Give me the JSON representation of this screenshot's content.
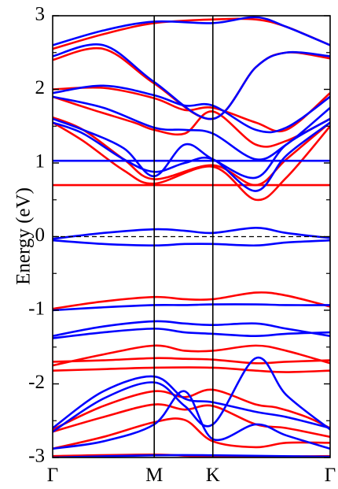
{
  "chart_data": {
    "type": "line",
    "chart_kind": "band-structure",
    "ylabel": "Energy (eV)",
    "xlabel": "",
    "ylim": [
      -3,
      3
    ],
    "y_ticks": [
      -3,
      -2,
      -1,
      0,
      1,
      2,
      3
    ],
    "y_tick_labels": [
      "-3",
      "-2",
      "-1",
      "0",
      "1",
      "2",
      "3"
    ],
    "x_path": {
      "labels": [
        "Γ",
        "M",
        "K",
        "Γ"
      ],
      "positions": [
        0,
        1,
        1.577,
        2.732
      ]
    },
    "xlim": [
      0,
      2.732
    ],
    "grid": false,
    "legend": "none",
    "fermi_level": {
      "y": 0,
      "style": "dashed",
      "color": "#000000"
    },
    "colors": {
      "red": "#ff0000",
      "blue": "#0000ff",
      "axis": "#000000"
    },
    "series": [
      {
        "color": "red",
        "x": [
          0,
          1,
          1.577,
          2.732
        ],
        "y": [
          -2.98,
          -2.96,
          -2.99,
          -2.98
        ]
      },
      {
        "color": "red",
        "x": [
          0,
          0.5,
          1,
          1.3,
          1.577,
          2.0,
          2.3,
          2.732
        ],
        "y": [
          -2.88,
          -2.72,
          -2.52,
          -2.49,
          -2.78,
          -2.86,
          -2.8,
          -2.8
        ]
      },
      {
        "color": "red",
        "x": [
          0,
          0.5,
          1,
          1.3,
          1.577,
          2.0,
          2.3,
          2.732
        ],
        "y": [
          -2.65,
          -2.45,
          -2.28,
          -2.35,
          -2.3,
          -2.55,
          -2.6,
          -2.72
        ]
      },
      {
        "color": "red",
        "x": [
          0,
          0.5,
          1,
          1.3,
          1.577,
          2.0,
          2.2,
          2.5,
          2.732
        ],
        "y": [
          -2.62,
          -2.3,
          -2.1,
          -2.18,
          -2.08,
          -2.28,
          -2.32,
          -2.45,
          -2.6
        ]
      },
      {
        "color": "red",
        "x": [
          0,
          0.5,
          1,
          1.577,
          2.0,
          2.3,
          2.732
        ],
        "y": [
          -1.82,
          -1.8,
          -1.78,
          -1.78,
          -1.82,
          -1.84,
          -1.82
        ]
      },
      {
        "color": "red",
        "x": [
          0,
          0.5,
          1,
          1.3,
          1.577,
          2.0,
          2.3,
          2.732
        ],
        "y": [
          -1.7,
          -1.68,
          -1.65,
          -1.66,
          -1.67,
          -1.72,
          -1.7,
          -1.68
        ]
      },
      {
        "color": "red",
        "x": [
          0,
          0.5,
          1,
          1.3,
          1.577,
          2.0,
          2.3,
          2.732
        ],
        "y": [
          -1.75,
          -1.6,
          -1.48,
          -1.55,
          -1.55,
          -1.48,
          -1.55,
          -1.72
        ]
      },
      {
        "color": "red",
        "x": [
          0,
          0.5,
          1,
          1.3,
          1.577,
          2.0,
          2.3,
          2.732
        ],
        "y": [
          -0.98,
          -0.88,
          -0.82,
          -0.85,
          -0.85,
          -0.76,
          -0.8,
          -0.95
        ]
      },
      {
        "color": "red",
        "x": [
          0,
          2.732
        ],
        "y": [
          0.7,
          0.7
        ]
      },
      {
        "color": "red",
        "x": [
          0,
          0.3,
          0.7,
          1,
          1.577,
          2.0,
          2.3,
          2.732
        ],
        "y": [
          1.55,
          1.3,
          0.9,
          0.72,
          0.95,
          0.5,
          0.8,
          1.5
        ]
      },
      {
        "color": "red",
        "x": [
          0,
          0.3,
          0.7,
          1,
          1.577,
          2.0,
          2.3,
          2.732
        ],
        "y": [
          1.62,
          1.45,
          1.05,
          0.78,
          0.97,
          0.7,
          1.05,
          1.55
        ]
      },
      {
        "color": "red",
        "x": [
          0,
          0.4,
          0.8,
          1,
          1.3,
          1.577,
          2.0,
          2.3,
          2.732
        ],
        "y": [
          1.9,
          1.72,
          1.55,
          1.45,
          1.4,
          1.7,
          1.25,
          1.3,
          1.6
        ]
      },
      {
        "color": "red",
        "x": [
          0,
          0.5,
          1,
          1.3,
          1.577,
          2.0,
          2.3,
          2.732
        ],
        "y": [
          2.0,
          2.02,
          1.88,
          1.72,
          1.75,
          1.55,
          1.45,
          1.95
        ]
      },
      {
        "color": "red",
        "x": [
          0,
          0.5,
          1,
          1.577,
          2.0,
          2.3,
          2.732
        ],
        "y": [
          2.4,
          2.55,
          2.08,
          1.6,
          2.3,
          2.5,
          2.42
        ]
      },
      {
        "color": "red",
        "x": [
          0,
          0.5,
          1,
          1.577,
          2.0,
          2.3,
          2.732
        ],
        "y": [
          2.55,
          2.75,
          2.9,
          2.95,
          2.95,
          2.85,
          2.6
        ]
      },
      {
        "color": "blue",
        "x": [
          0,
          1,
          1.577,
          2.732
        ],
        "y": [
          -3.0,
          -2.97,
          -2.97,
          -2.99
        ]
      },
      {
        "color": "blue",
        "x": [
          0,
          0.5,
          1,
          1.3,
          1.577,
          2.0,
          2.3,
          2.732
        ],
        "y": [
          -2.88,
          -2.78,
          -2.55,
          -2.1,
          -2.75,
          -2.55,
          -2.7,
          -2.88
        ]
      },
      {
        "color": "blue",
        "x": [
          0,
          0.5,
          1,
          1.3,
          1.577,
          2.0,
          2.3,
          2.732
        ],
        "y": [
          -2.65,
          -2.2,
          -1.98,
          -2.3,
          -2.55,
          -1.65,
          -2.15,
          -2.62
        ]
      },
      {
        "color": "blue",
        "x": [
          0,
          0.5,
          1,
          1.3,
          1.577,
          2.0,
          2.3,
          2.732
        ],
        "y": [
          -2.6,
          -2.1,
          -1.9,
          -2.2,
          -2.25,
          -2.38,
          -2.45,
          -2.6
        ]
      },
      {
        "color": "blue",
        "x": [
          0,
          0.5,
          1,
          1.3,
          1.577,
          2.0,
          2.3,
          2.732
        ],
        "y": [
          -1.38,
          -1.3,
          -1.25,
          -1.3,
          -1.32,
          -1.35,
          -1.32,
          -1.3
        ]
      },
      {
        "color": "blue",
        "x": [
          0,
          0.5,
          1,
          1.3,
          1.577,
          2.0,
          2.3,
          2.732
        ],
        "y": [
          -1.35,
          -1.22,
          -1.15,
          -1.18,
          -1.2,
          -1.18,
          -1.25,
          -1.35
        ]
      },
      {
        "color": "blue",
        "x": [
          0,
          0.5,
          1,
          1.3,
          1.577,
          2.0,
          2.3,
          2.732
        ],
        "y": [
          -1.0,
          -0.96,
          -0.93,
          -0.93,
          -0.92,
          -0.92,
          -0.93,
          -0.93
        ]
      },
      {
        "color": "blue",
        "x": [
          0,
          0.5,
          1,
          1.3,
          1.577,
          2.0,
          2.3,
          2.732
        ],
        "y": [
          -0.05,
          -0.1,
          -0.12,
          -0.1,
          -0.1,
          -0.12,
          -0.08,
          -0.05
        ]
      },
      {
        "color": "blue",
        "x": [
          0,
          0.5,
          1,
          1.3,
          1.577,
          2.0,
          2.3,
          2.732
        ],
        "y": [
          -0.03,
          0.05,
          0.1,
          0.08,
          0.05,
          0.12,
          0.05,
          -0.02
        ]
      },
      {
        "color": "blue",
        "x": [
          0,
          2.732
        ],
        "y": [
          1.03,
          1.03
        ]
      },
      {
        "color": "blue",
        "x": [
          0,
          0.3,
          0.7,
          1,
          1.3,
          1.577,
          2.0,
          2.3,
          2.732
        ],
        "y": [
          1.55,
          1.4,
          1.05,
          0.88,
          1.0,
          1.05,
          0.62,
          1.1,
          1.55
        ]
      },
      {
        "color": "blue",
        "x": [
          0,
          0.3,
          0.7,
          1,
          1.3,
          1.577,
          2.0,
          2.3,
          2.732
        ],
        "y": [
          1.6,
          1.45,
          1.2,
          0.82,
          1.25,
          1.05,
          0.8,
          1.25,
          1.6
        ]
      },
      {
        "color": "blue",
        "x": [
          0,
          0.5,
          1,
          1.3,
          1.577,
          2.0,
          2.3,
          2.732
        ],
        "y": [
          1.9,
          1.75,
          1.48,
          1.45,
          1.4,
          1.05,
          1.25,
          1.75
        ]
      },
      {
        "color": "blue",
        "x": [
          0,
          0.5,
          1,
          1.3,
          1.577,
          2.0,
          2.3,
          2.732
        ],
        "y": [
          1.95,
          2.05,
          1.92,
          1.78,
          1.78,
          1.45,
          1.48,
          1.9
        ]
      },
      {
        "color": "blue",
        "x": [
          0,
          0.5,
          1,
          1.577,
          2.0,
          2.3,
          2.732
        ],
        "y": [
          2.45,
          2.6,
          2.1,
          1.6,
          2.3,
          2.5,
          2.45
        ]
      },
      {
        "color": "blue",
        "x": [
          0,
          0.5,
          1,
          1.577,
          2.0,
          2.3,
          2.732
        ],
        "y": [
          2.6,
          2.8,
          2.92,
          2.9,
          2.98,
          2.85,
          2.6
        ]
      }
    ]
  }
}
